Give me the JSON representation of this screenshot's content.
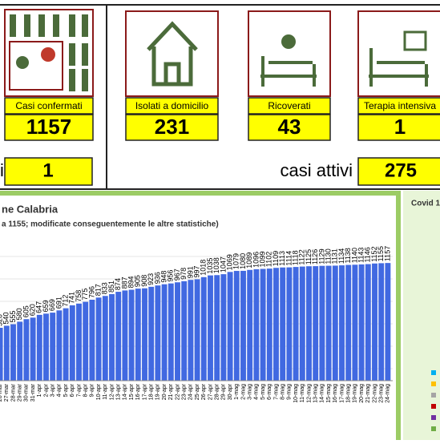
{
  "dashboard": {
    "tiles": [
      {
        "label": "Casi confermati",
        "value": "1157"
      },
      {
        "label": "Isolati a domicilio",
        "value": "231"
      },
      {
        "label": "Ricoverati",
        "value": "43"
      },
      {
        "label": "Terapia intensiva",
        "value": "1"
      }
    ],
    "left_second": {
      "label": "i",
      "value": "1"
    },
    "active": {
      "label": "casi attivi",
      "value": "275"
    },
    "side_panel_title": "Covid 1"
  },
  "chart_data": {
    "type": "bar",
    "title": "ne Calabria",
    "subtitle": "a 1155; modificate conseguentemente le altre statistiche)",
    "color": "#4169e1",
    "ylim": [
      0,
      1300
    ],
    "categories": [
      "26-mar",
      "27-mar",
      "28-mar",
      "29-mar",
      "30-mar",
      "31-mar",
      "1-apr",
      "2-apr",
      "3-apr",
      "4-apr",
      "5-apr",
      "6-apr",
      "7-apr",
      "8-apr",
      "9-apr",
      "10-apr",
      "11-apr",
      "12-apr",
      "13-apr",
      "14-apr",
      "15-apr",
      "16-apr",
      "17-apr",
      "18-apr",
      "19-apr",
      "20-apr",
      "21-apr",
      "22-apr",
      "23-apr",
      "24-apr",
      "25-apr",
      "26-apr",
      "27-apr",
      "28-apr",
      "29-apr",
      "30-apr",
      "1-mag",
      "2-mag",
      "3-mag",
      "4-mag",
      "5-mag",
      "6-mag",
      "7-mag",
      "8-mag",
      "9-mag",
      "10-mag",
      "11-mag",
      "12-mag",
      "13-mag",
      "14-mag",
      "15-mag",
      "16-mag",
      "17-mag",
      "18-mag",
      "19-mag",
      "20-mag",
      "21-mag",
      "22-mag",
      "23-mag",
      "24-mag"
    ],
    "values": [
      520,
      540,
      555,
      580,
      605,
      620,
      647,
      659,
      669,
      691,
      712,
      741,
      758,
      775,
      796,
      817,
      833,
      851,
      874,
      887,
      894,
      905,
      908,
      923,
      936,
      948,
      956,
      967,
      978,
      991,
      997,
      1018,
      1035,
      1038,
      1047,
      1069,
      1079,
      1080,
      1089,
      1096,
      1099,
      1102,
      1109,
      1113,
      1114,
      1118,
      1122,
      1125,
      1126,
      1129,
      1130,
      1131,
      1134,
      1138,
      1140,
      1143,
      1146,
      1152,
      1155,
      1157
    ]
  }
}
